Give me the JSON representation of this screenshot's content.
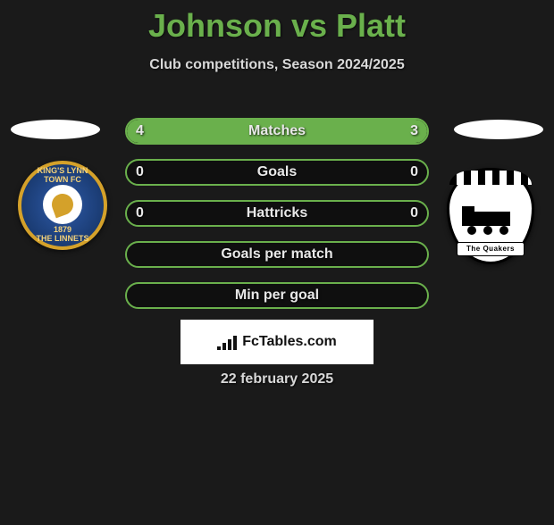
{
  "title": "Johnson vs Platt",
  "subtitle": "Club competitions, Season 2024/2025",
  "date_text": "22 february 2025",
  "brand": "FcTables.com",
  "colors": {
    "accent": "#6ab04c",
    "background": "#1a1a1a",
    "text_light": "#e8e8e8",
    "text_muted": "#d8d8d8",
    "crest_left_bg": "#1a3b72",
    "crest_left_border": "#d4a12a",
    "crest_right_bg": "#ffffff",
    "crest_right_border": "#000000"
  },
  "crests": {
    "left": {
      "top_text": "KING'S LYNN TOWN FC",
      "year": "1879",
      "bottom_text": "THE LINNETS"
    },
    "right": {
      "bottom_text": "The Quakers"
    }
  },
  "stats": [
    {
      "label": "Matches",
      "left_val": "4",
      "right_val": "3",
      "left_fill_pct": 57,
      "right_fill_pct": 43
    },
    {
      "label": "Goals",
      "left_val": "0",
      "right_val": "0",
      "left_fill_pct": 0,
      "right_fill_pct": 0
    },
    {
      "label": "Hattricks",
      "left_val": "0",
      "right_val": "0",
      "left_fill_pct": 0,
      "right_fill_pct": 0
    },
    {
      "label": "Goals per match",
      "left_val": "",
      "right_val": "",
      "left_fill_pct": 0,
      "right_fill_pct": 0
    },
    {
      "label": "Min per goal",
      "left_val": "",
      "right_val": "",
      "left_fill_pct": 0,
      "right_fill_pct": 0
    }
  ]
}
